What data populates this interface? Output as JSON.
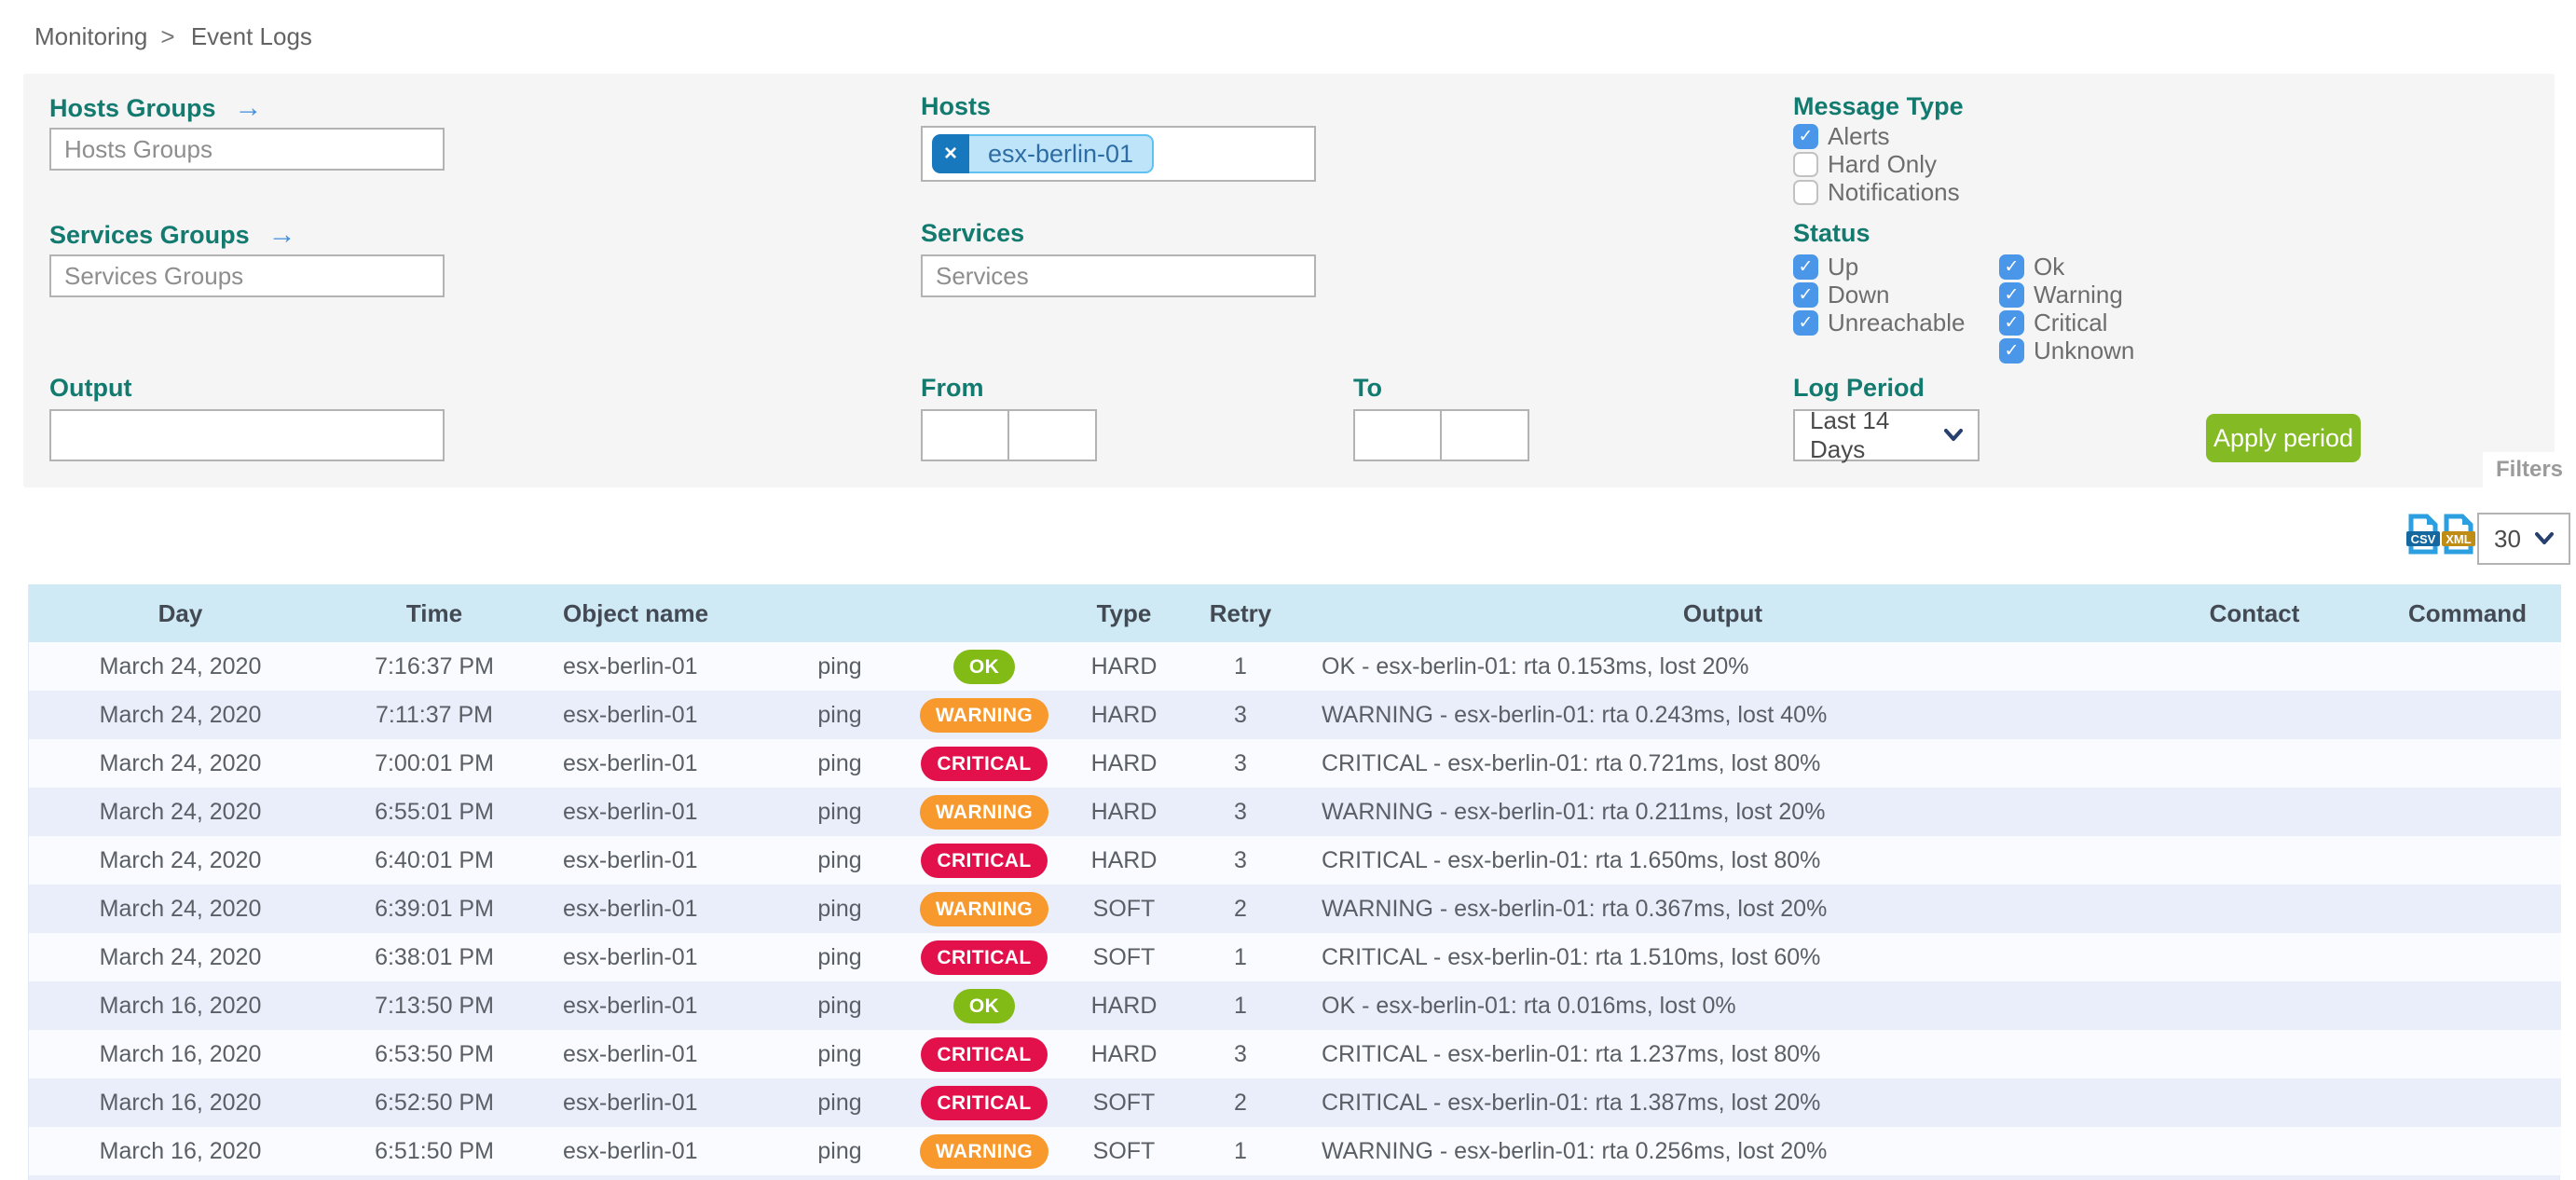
{
  "breadcrumb": {
    "items": [
      "Monitoring",
      "Event Logs"
    ],
    "separator": ">"
  },
  "filters": {
    "hosts_groups": {
      "label": "Hosts Groups",
      "placeholder": "Hosts Groups",
      "value": ""
    },
    "services_groups": {
      "label": "Services Groups",
      "placeholder": "Services Groups",
      "value": ""
    },
    "hosts": {
      "label": "Hosts",
      "selected_tag": "esx-berlin-01",
      "remove_glyph": "×"
    },
    "services": {
      "label": "Services",
      "placeholder": "Services",
      "value": ""
    },
    "output": {
      "label": "Output",
      "value": ""
    },
    "from": {
      "label": "From",
      "date_value": "",
      "time_value": ""
    },
    "to": {
      "label": "To",
      "date_value": "",
      "time_value": ""
    },
    "message_type": {
      "label": "Message Type",
      "options": [
        {
          "label": "Alerts",
          "checked": true
        },
        {
          "label": "Hard Only",
          "checked": false
        },
        {
          "label": "Notifications",
          "checked": false
        }
      ]
    },
    "status": {
      "label": "Status",
      "col1": [
        {
          "label": "Up",
          "checked": true
        },
        {
          "label": "Down",
          "checked": true
        },
        {
          "label": "Unreachable",
          "checked": true
        }
      ],
      "col2": [
        {
          "label": "Ok",
          "checked": true
        },
        {
          "label": "Warning",
          "checked": true
        },
        {
          "label": "Critical",
          "checked": true
        },
        {
          "label": "Unknown",
          "checked": true
        }
      ]
    },
    "log_period": {
      "label": "Log Period",
      "selected": "Last 14 Days"
    },
    "apply_label": "Apply period",
    "filters_tab_label": "Filters"
  },
  "toolbar": {
    "csv_label": "CSV",
    "xml_label": "XML",
    "page_size": "30"
  },
  "table": {
    "columns": [
      "Day",
      "Time",
      "Object name",
      "",
      "",
      "Type",
      "Retry",
      "Output",
      "Contact",
      "Command"
    ],
    "rows": [
      {
        "day": "March 24, 2020",
        "time": "7:16:37 PM",
        "object": "esx-berlin-01",
        "service": "ping",
        "status": "OK",
        "type": "HARD",
        "retry": "1",
        "output": "OK - esx-berlin-01: rta 0.153ms, lost 20%",
        "contact": "",
        "command": ""
      },
      {
        "day": "March 24, 2020",
        "time": "7:11:37 PM",
        "object": "esx-berlin-01",
        "service": "ping",
        "status": "WARNING",
        "type": "HARD",
        "retry": "3",
        "output": "WARNING - esx-berlin-01: rta 0.243ms, lost 40%",
        "contact": "",
        "command": ""
      },
      {
        "day": "March 24, 2020",
        "time": "7:00:01 PM",
        "object": "esx-berlin-01",
        "service": "ping",
        "status": "CRITICAL",
        "type": "HARD",
        "retry": "3",
        "output": "CRITICAL - esx-berlin-01: rta 0.721ms, lost 80%",
        "contact": "",
        "command": ""
      },
      {
        "day": "March 24, 2020",
        "time": "6:55:01 PM",
        "object": "esx-berlin-01",
        "service": "ping",
        "status": "WARNING",
        "type": "HARD",
        "retry": "3",
        "output": "WARNING - esx-berlin-01: rta 0.211ms, lost 20%",
        "contact": "",
        "command": ""
      },
      {
        "day": "March 24, 2020",
        "time": "6:40:01 PM",
        "object": "esx-berlin-01",
        "service": "ping",
        "status": "CRITICAL",
        "type": "HARD",
        "retry": "3",
        "output": "CRITICAL - esx-berlin-01: rta 1.650ms, lost 80%",
        "contact": "",
        "command": ""
      },
      {
        "day": "March 24, 2020",
        "time": "6:39:01 PM",
        "object": "esx-berlin-01",
        "service": "ping",
        "status": "WARNING",
        "type": "SOFT",
        "retry": "2",
        "output": "WARNING - esx-berlin-01: rta 0.367ms, lost 20%",
        "contact": "",
        "command": ""
      },
      {
        "day": "March 24, 2020",
        "time": "6:38:01 PM",
        "object": "esx-berlin-01",
        "service": "ping",
        "status": "CRITICAL",
        "type": "SOFT",
        "retry": "1",
        "output": "CRITICAL - esx-berlin-01: rta 1.510ms, lost 60%",
        "contact": "",
        "command": ""
      },
      {
        "day": "March 16, 2020",
        "time": "7:13:50 PM",
        "object": "esx-berlin-01",
        "service": "ping",
        "status": "OK",
        "type": "HARD",
        "retry": "1",
        "output": "OK - esx-berlin-01: rta 0.016ms, lost 0%",
        "contact": "",
        "command": ""
      },
      {
        "day": "March 16, 2020",
        "time": "6:53:50 PM",
        "object": "esx-berlin-01",
        "service": "ping",
        "status": "CRITICAL",
        "type": "HARD",
        "retry": "3",
        "output": "CRITICAL - esx-berlin-01: rta 1.237ms, lost 80%",
        "contact": "",
        "command": ""
      },
      {
        "day": "March 16, 2020",
        "time": "6:52:50 PM",
        "object": "esx-berlin-01",
        "service": "ping",
        "status": "CRITICAL",
        "type": "SOFT",
        "retry": "2",
        "output": "CRITICAL - esx-berlin-01: rta 1.387ms, lost 20%",
        "contact": "",
        "command": ""
      },
      {
        "day": "March 16, 2020",
        "time": "6:51:50 PM",
        "object": "esx-berlin-01",
        "service": "ping",
        "status": "WARNING",
        "type": "SOFT",
        "retry": "1",
        "output": "WARNING - esx-berlin-01: rta 0.256ms, lost 20%",
        "contact": "",
        "command": ""
      }
    ]
  },
  "colors": {
    "label_teal": "#127a6f",
    "checkbox_blue": "#4a96e8",
    "apply_green": "#84bb25",
    "ok_badge": "#82ba16",
    "warning_badge": "#f8992d",
    "critical_badge": "#e3114b",
    "table_header_bg": "#cfe9f5",
    "row_alt_bg": "#e9eefa",
    "tag_bg": "#bee4f9",
    "tag_remove_bg": "#1878bd"
  }
}
